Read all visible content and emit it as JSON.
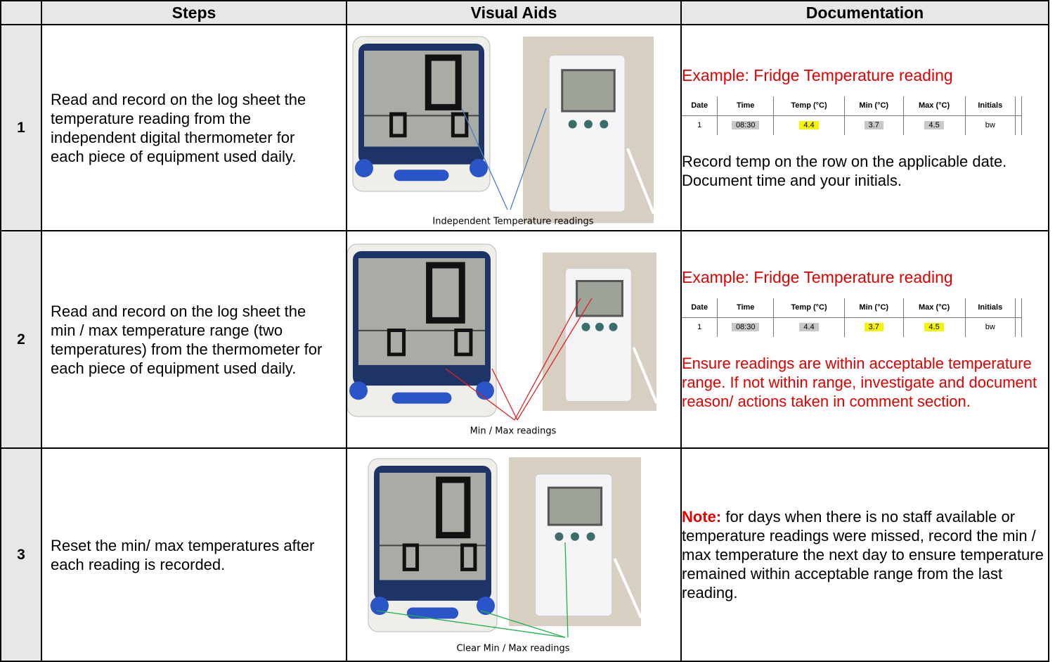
{
  "table": {
    "header": [
      "Steps",
      "Visual Aids",
      "Documentation"
    ],
    "rows": [
      {
        "number": "1",
        "step": "Read and record on the log sheet the temperature reading from the independent digital thermometer for each piece of equipment used daily.",
        "caption": "Independent Temperature readings",
        "arrow_color": "#4a7fc1",
        "doc": {
          "example": "Example: Fridge Temperature reading",
          "log": {
            "columns": [
              "Date",
              "Time",
              "Temp (°C)",
              "Min (°C)",
              "Max (°C)",
              "Initials"
            ],
            "cells": [
              {
                "text": "1"
              },
              {
                "text": "08:30"
              },
              {
                "text": "4.4",
                "highlight": true
              },
              {
                "text": "3.7"
              },
              {
                "text": "4.5"
              },
              {
                "text": "bw"
              }
            ]
          },
          "text": "Record temp on the row on the applicable date. Document time and your initials.",
          "text_color": "#000000"
        }
      },
      {
        "number": "2",
        "step": "Read and record on the log sheet the min / max temperature range (two temperatures) from the thermometer for each piece of equipment used daily.",
        "caption": "Min / Max readings",
        "arrow_color": "#e02020",
        "doc": {
          "example": "Example: Fridge Temperature reading",
          "log": {
            "columns": [
              "Date",
              "Time",
              "Temp (°C)",
              "Min (°C)",
              "Max (°C)",
              "Initials"
            ],
            "cells": [
              {
                "text": "1"
              },
              {
                "text": "08:30"
              },
              {
                "text": "4.4"
              },
              {
                "text": "3.7",
                "highlight": true
              },
              {
                "text": "4.5",
                "highlight": true
              },
              {
                "text": "bw"
              }
            ]
          },
          "text": "Ensure readings are within acceptable temperature range. If not within range, investigate and document reason/ actions taken in comment section.",
          "text_color": "#e00000"
        }
      },
      {
        "number": "3",
        "step": "Reset the min/ max temperatures after each reading is recorded.",
        "caption": "Clear Min / Max readings",
        "arrow_color": "#22b04a",
        "doc": {
          "note_label": "Note:",
          "text": "for days when there is no staff available or temperature readings were missed, record the min / max temperature the next day to ensure temperature remained within acceptable range from the last reading.",
          "text_color": "#000000"
        }
      }
    ]
  }
}
